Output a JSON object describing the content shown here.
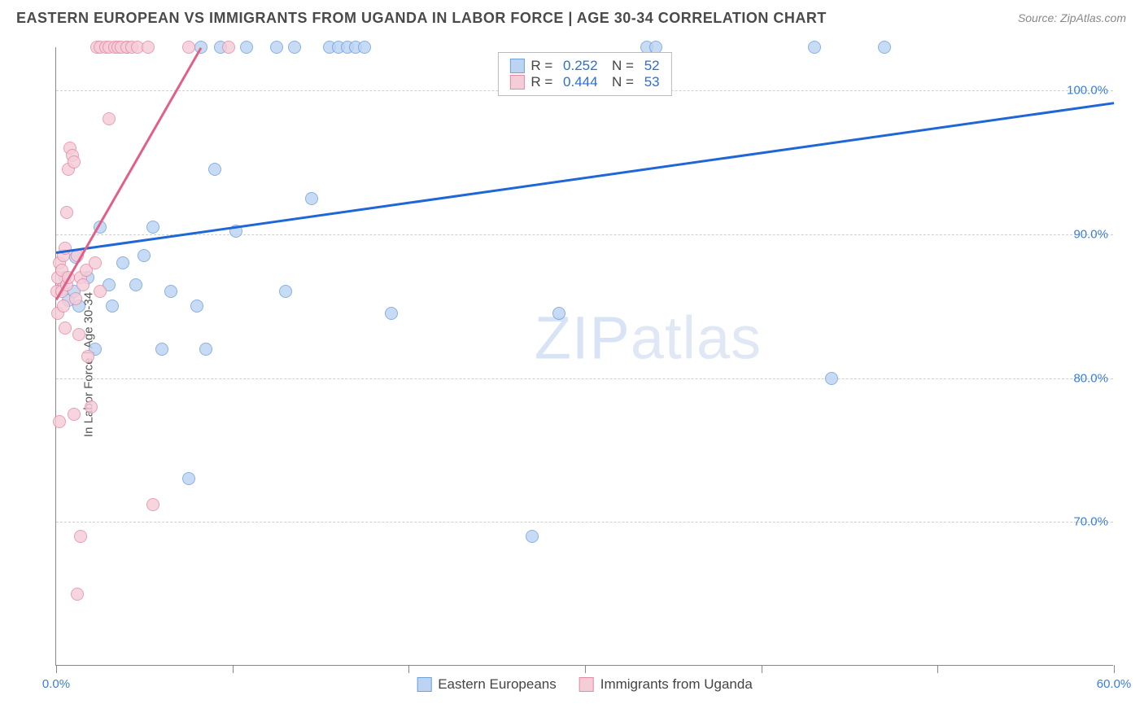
{
  "header": {
    "title": "EASTERN EUROPEAN VS IMMIGRANTS FROM UGANDA IN LABOR FORCE | AGE 30-34 CORRELATION CHART",
    "source_label": "Source: ",
    "source_name": "ZipAtlas.com"
  },
  "chart": {
    "type": "scatter",
    "ylabel": "In Labor Force | Age 30-34",
    "xlim": [
      0,
      60
    ],
    "ylim": [
      60,
      103
    ],
    "x_ticks": [
      0,
      10,
      20,
      30,
      40,
      50,
      60
    ],
    "x_tick_labels": [
      "0.0%",
      "",
      "",
      "",
      "",
      "",
      "60.0%"
    ],
    "y_ticks": [
      70,
      80,
      90,
      100
    ],
    "y_tick_labels": [
      "70.0%",
      "80.0%",
      "90.0%",
      "100.0%"
    ],
    "grid_color": "#cfcfcf",
    "axis_color": "#888888",
    "background_color": "#ffffff",
    "tick_label_color": "#3b7dd8",
    "dot_radius": 8,
    "series": [
      {
        "name": "Eastern Europeans",
        "fill": "#bcd4f2",
        "stroke": "#6ea0e0",
        "R": "0.252",
        "N": "52",
        "trend": {
          "x1": 0,
          "y1": 88.8,
          "x2": 60,
          "y2": 99.2,
          "color": "#1f66d6"
        },
        "points": [
          [
            0.3,
            86.2
          ],
          [
            0.5,
            87.0
          ],
          [
            0.7,
            85.4
          ],
          [
            1.0,
            86.0
          ],
          [
            1.1,
            88.4
          ],
          [
            1.3,
            85.0
          ],
          [
            1.8,
            87.0
          ],
          [
            2.2,
            82.0
          ],
          [
            2.5,
            90.5
          ],
          [
            3.0,
            86.5
          ],
          [
            3.2,
            85.0
          ],
          [
            3.8,
            88.0
          ],
          [
            4.0,
            103.0
          ],
          [
            4.5,
            86.5
          ],
          [
            5.0,
            88.5
          ],
          [
            5.5,
            90.5
          ],
          [
            6.0,
            82.0
          ],
          [
            6.5,
            86.0
          ],
          [
            7.5,
            73.0
          ],
          [
            8.0,
            85.0
          ],
          [
            8.2,
            103.0
          ],
          [
            8.5,
            82.0
          ],
          [
            9.0,
            94.5
          ],
          [
            9.3,
            103.0
          ],
          [
            10.2,
            90.2
          ],
          [
            10.8,
            103.0
          ],
          [
            12.5,
            103.0
          ],
          [
            13.0,
            86.0
          ],
          [
            13.5,
            103.0
          ],
          [
            14.5,
            92.5
          ],
          [
            15.5,
            103.0
          ],
          [
            16.0,
            103.0
          ],
          [
            16.5,
            103.0
          ],
          [
            17.0,
            103.0
          ],
          [
            17.5,
            103.0
          ],
          [
            19.0,
            84.5
          ],
          [
            27.0,
            69.0
          ],
          [
            28.5,
            84.5
          ],
          [
            33.5,
            103.0
          ],
          [
            34.0,
            103.0
          ],
          [
            43.0,
            103.0
          ],
          [
            44.0,
            80.0
          ],
          [
            47.0,
            103.0
          ]
        ]
      },
      {
        "name": "Immigrants from Uganda",
        "fill": "#f5cdd8",
        "stroke": "#e58aa3",
        "R": "0.444",
        "N": "53",
        "trend": {
          "x1": 0,
          "y1": 85.5,
          "x2": 8.2,
          "y2": 103.0,
          "color": "#e26088"
        },
        "points": [
          [
            0.05,
            86.0
          ],
          [
            0.1,
            87.0
          ],
          [
            0.1,
            84.5
          ],
          [
            0.2,
            88.0
          ],
          [
            0.2,
            77.0
          ],
          [
            0.3,
            86.0
          ],
          [
            0.3,
            87.5
          ],
          [
            0.4,
            88.5
          ],
          [
            0.4,
            85.0
          ],
          [
            0.5,
            89.0
          ],
          [
            0.5,
            83.5
          ],
          [
            0.6,
            91.5
          ],
          [
            0.6,
            86.5
          ],
          [
            0.7,
            94.5
          ],
          [
            0.7,
            87.0
          ],
          [
            0.8,
            96.0
          ],
          [
            0.9,
            95.5
          ],
          [
            1.0,
            95.0
          ],
          [
            1.0,
            77.5
          ],
          [
            1.1,
            85.5
          ],
          [
            1.2,
            88.5
          ],
          [
            1.2,
            65.0
          ],
          [
            1.3,
            83.0
          ],
          [
            1.4,
            87.0
          ],
          [
            1.4,
            69.0
          ],
          [
            1.5,
            86.5
          ],
          [
            1.7,
            87.5
          ],
          [
            1.8,
            81.5
          ],
          [
            2.0,
            78.0
          ],
          [
            2.2,
            88.0
          ],
          [
            2.3,
            103.0
          ],
          [
            2.5,
            86.0
          ],
          [
            2.5,
            103.0
          ],
          [
            2.8,
            103.0
          ],
          [
            3.0,
            98.0
          ],
          [
            3.0,
            103.0
          ],
          [
            3.3,
            103.0
          ],
          [
            3.5,
            103.0
          ],
          [
            3.7,
            103.0
          ],
          [
            4.0,
            103.0
          ],
          [
            4.3,
            103.0
          ],
          [
            4.6,
            103.0
          ],
          [
            5.2,
            103.0
          ],
          [
            5.5,
            71.2
          ],
          [
            7.5,
            103.0
          ],
          [
            9.8,
            103.0
          ]
        ]
      }
    ],
    "legend_bottom": [
      {
        "label": "Eastern Europeans",
        "fill": "#bcd4f2",
        "stroke": "#6ea0e0"
      },
      {
        "label": "Immigrants from Uganda",
        "fill": "#f5cdd8",
        "stroke": "#e58aa3"
      }
    ],
    "watermark": {
      "part1": "ZIP",
      "part2": "atlas"
    }
  }
}
